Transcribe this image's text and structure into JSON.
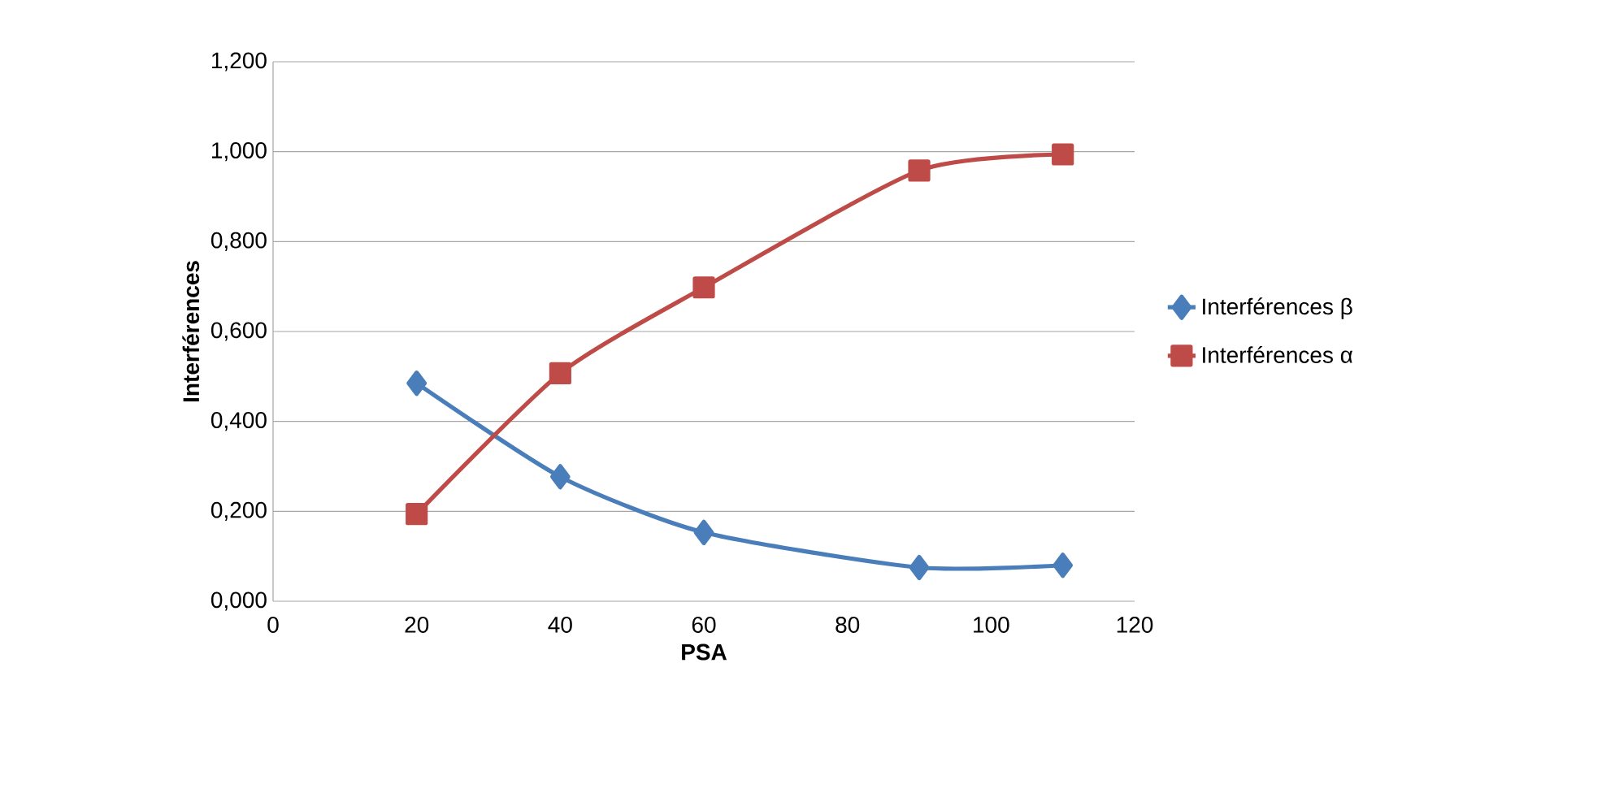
{
  "chart_data": {
    "type": "line",
    "xlabel": "PSA",
    "ylabel": "Interférences",
    "x": [
      20,
      40,
      60,
      90,
      110
    ],
    "series": [
      {
        "name": "Interférences β",
        "color": "#4a7ebb",
        "marker": "diamond",
        "values": [
          0.485,
          0.277,
          0.153,
          0.075,
          0.08
        ]
      },
      {
        "name": "Interférences α",
        "color": "#be4b48",
        "marker": "square",
        "values": [
          0.194,
          0.507,
          0.698,
          0.958,
          0.994
        ]
      }
    ],
    "xlim": [
      0,
      120
    ],
    "xticks": [
      0,
      20,
      40,
      60,
      80,
      100,
      120
    ],
    "ylim": [
      0,
      1.2
    ],
    "yticks": [
      {
        "value": 0,
        "label": "0,000"
      },
      {
        "value": 0.2,
        "label": "0,200"
      },
      {
        "value": 0.4,
        "label": "0,400"
      },
      {
        "value": 0.6,
        "label": "0,600"
      },
      {
        "value": 0.8,
        "label": "0,800"
      },
      {
        "value": 1.0,
        "label": "1,000"
      },
      {
        "value": 1.2,
        "label": "1,200"
      }
    ],
    "grid": "y",
    "legend": "right",
    "line_style": "solid"
  }
}
